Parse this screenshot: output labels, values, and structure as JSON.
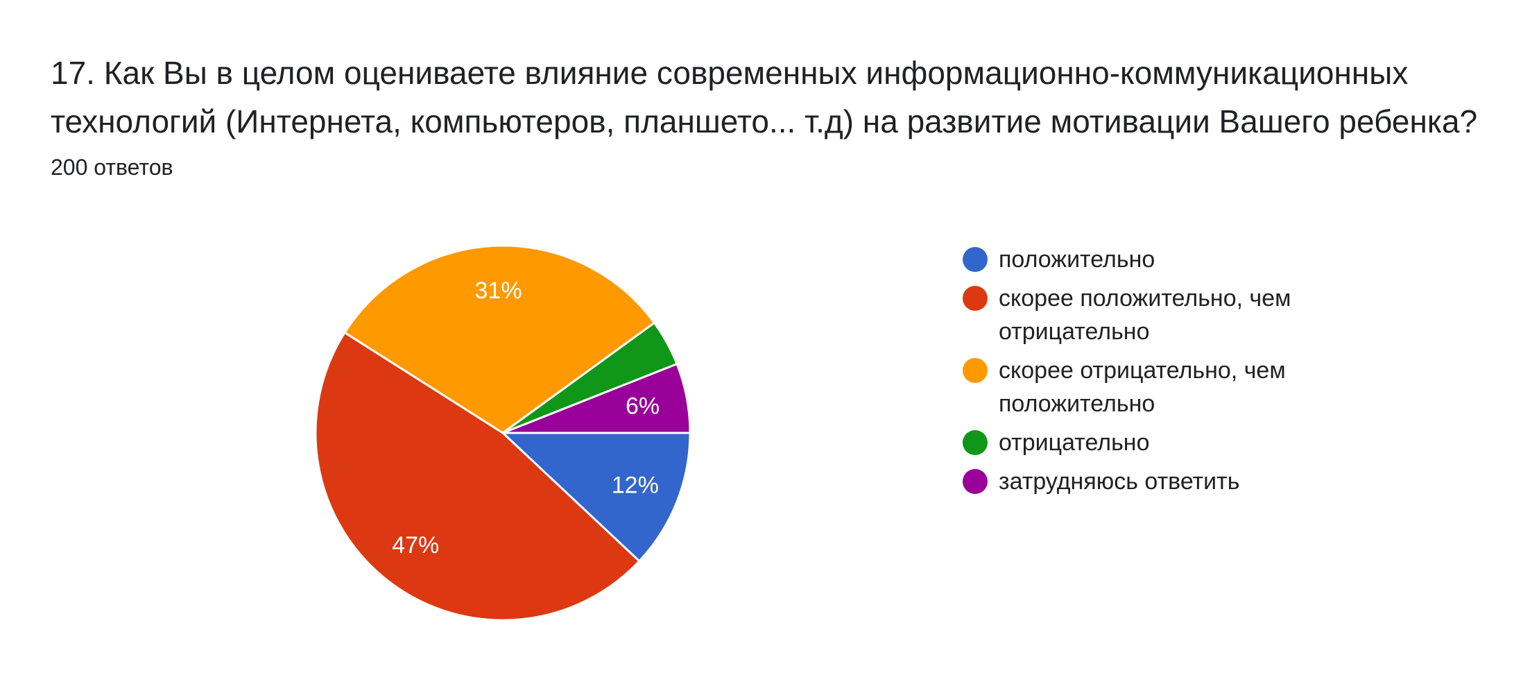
{
  "question": {
    "title": "17. Как Вы в целом оцениваете влияние современных информационно-коммуникационных технологий (Интернета, компьютеров, планшето... т.д)  на развитие мотивации Вашего ребенка?",
    "response_count": "200 ответов"
  },
  "chart_data": {
    "type": "pie",
    "title": "17. Как Вы в целом оцениваете влияние современных информационно-коммуникационных технологий (Интернета, компьютеров, планшето... т.д)  на развитие мотивации Вашего ребенка?",
    "total_responses": 200,
    "legend_position": "right",
    "start_angle": "3 o'clock, clockwise",
    "slices": [
      {
        "label": "положительно",
        "percent": 12,
        "display": "12%",
        "color": "#3366cc"
      },
      {
        "label": "скорее положительно, чем отрицательно",
        "percent": 47,
        "display": "47%",
        "color": "#dc3912"
      },
      {
        "label": "скорее отрицательно, чем положительно",
        "percent": 31,
        "display": "31%",
        "color": "#ff9900"
      },
      {
        "label": "отрицательно",
        "percent": 4,
        "display": "",
        "color": "#109618"
      },
      {
        "label": "затрудняюсь ответить",
        "percent": 6,
        "display": "6%",
        "color": "#990099"
      }
    ]
  }
}
